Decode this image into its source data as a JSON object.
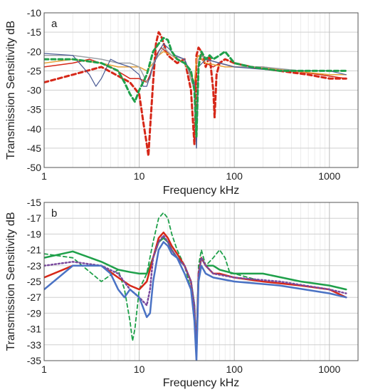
{
  "chart_data": [
    {
      "type": "line",
      "panel_label": "a",
      "xlabel": "Frequency  kHz",
      "ylabel": "Transmission Sensitivity  dB",
      "x_scale": "log",
      "xlim": [
        1,
        2000
      ],
      "ylim": [
        -50,
        -10
      ],
      "x_ticks": [
        1,
        10,
        100,
        1000
      ],
      "x_tick_labels": [
        "1",
        "10",
        "100",
        "1000"
      ],
      "y_ticks": [
        -50,
        -45,
        -40,
        -35,
        -30,
        -25,
        -20,
        -15,
        -10
      ],
      "y_tick_labels": [
        "-50",
        "-45",
        "-40",
        "-35",
        "-30",
        "-25",
        "-20",
        "-15",
        "-10"
      ],
      "grid": true,
      "series": [
        {
          "color": "#d62718",
          "dash": "6,4",
          "width": 3,
          "x": [
            1,
            2,
            4,
            8,
            10,
            11,
            12,
            12.5,
            13,
            14,
            15,
            16,
            17,
            20,
            25,
            30,
            35,
            38,
            39,
            40,
            42,
            45,
            50,
            55,
            60,
            62,
            65,
            70,
            80,
            100,
            150,
            300,
            600,
            1000,
            1500
          ],
          "y": [
            -28,
            -26,
            -24,
            -28,
            -31,
            -38,
            -44,
            -47,
            -40,
            -28,
            -18,
            -15,
            -16,
            -21,
            -23,
            -22,
            -30,
            -44,
            -35,
            -21,
            -19,
            -20,
            -24,
            -21,
            -30,
            -37,
            -26,
            -23,
            -22,
            -23,
            -24,
            -25,
            -26,
            -27,
            -27
          ]
        },
        {
          "color": "#d62718",
          "dash": "",
          "width": 1.5,
          "x": [
            1,
            2,
            3,
            5,
            8,
            10,
            12,
            13,
            15,
            17,
            19,
            22,
            25,
            30,
            35,
            39,
            40,
            42,
            45,
            50,
            60,
            70,
            100,
            200,
            400,
            800,
            1500
          ],
          "y": [
            -24,
            -23,
            -22,
            -24,
            -27,
            -27,
            -28,
            -26,
            -21,
            -19,
            -20,
            -21,
            -22,
            -23,
            -26,
            -30,
            -22,
            -21,
            -22,
            -23,
            -24,
            -23,
            -24,
            -24,
            -25,
            -26,
            -27
          ]
        },
        {
          "color": "#e8a23a",
          "dash": "",
          "width": 1.5,
          "x": [
            1,
            2,
            4,
            6,
            8,
            10,
            12,
            14,
            16,
            18,
            22,
            30,
            38,
            40,
            42,
            50,
            80,
            150,
            400,
            1000,
            1500
          ],
          "y": [
            -23,
            -22,
            -23,
            -24,
            -24,
            -24,
            -25,
            -23,
            -21,
            -20,
            -21,
            -23,
            -28,
            -22,
            -21,
            -23,
            -24,
            -24,
            -25,
            -26,
            -26
          ]
        },
        {
          "color": "#9ca0a6",
          "dash": "",
          "width": 1.5,
          "x": [
            1,
            2,
            4,
            6,
            8,
            10,
            11,
            12,
            13,
            14,
            16,
            18,
            22,
            30,
            38,
            39,
            40,
            41,
            42,
            45,
            50,
            70,
            100,
            200,
            500,
            1000,
            1500
          ],
          "y": [
            -21,
            -21,
            -22,
            -23,
            -23,
            -24,
            -26,
            -28,
            -27,
            -23,
            -21,
            -19,
            -21,
            -22,
            -30,
            -40,
            -45,
            -35,
            -22,
            -21,
            -22,
            -23,
            -24,
            -24,
            -25,
            -25,
            -25
          ]
        },
        {
          "color": "#4a5a94",
          "dash": "",
          "width": 1.2,
          "x": [
            1,
            2,
            3,
            3.5,
            4,
            5,
            6,
            8,
            10,
            11,
            12,
            14,
            16,
            18,
            20,
            24,
            30,
            38,
            40,
            42,
            50,
            70,
            100,
            300,
            1000,
            1500
          ],
          "y": [
            -20.5,
            -21,
            -26,
            -29,
            -27,
            -22,
            -23,
            -24,
            -26,
            -29,
            -29,
            -24,
            -20,
            -18,
            -19,
            -21,
            -22,
            -28,
            -45,
            -24,
            -22,
            -23,
            -24,
            -25,
            -25,
            -26
          ]
        },
        {
          "color": "#1fa04a",
          "dash": "6,4",
          "width": 3,
          "x": [
            1,
            2,
            4,
            6,
            7,
            8,
            9,
            10,
            12,
            14,
            16,
            18,
            20,
            22,
            25,
            30,
            35,
            38,
            40,
            42,
            45,
            50,
            55,
            60,
            70,
            80,
            100,
            150,
            300,
            600,
            1000,
            1500
          ],
          "y": [
            -22,
            -22,
            -23,
            -25,
            -28,
            -31,
            -33,
            -30,
            -26,
            -20,
            -18,
            -16.5,
            -17,
            -20,
            -22,
            -23,
            -25,
            -30,
            -42,
            -24,
            -20,
            -22,
            -21,
            -22,
            -21,
            -20,
            -23,
            -24,
            -25,
            -25,
            -25,
            -25
          ]
        }
      ]
    },
    {
      "type": "line",
      "panel_label": "b",
      "xlabel": "Frequency  kHz",
      "ylabel": "Transmission Sensitivity  dB",
      "x_scale": "log",
      "xlim": [
        1,
        2000
      ],
      "ylim": [
        -35,
        -15
      ],
      "x_ticks": [
        1,
        10,
        100,
        1000
      ],
      "x_tick_labels": [
        "1",
        "10",
        "100",
        "1000"
      ],
      "y_ticks": [
        -35,
        -33,
        -31,
        -29,
        -27,
        -25,
        -23,
        -21,
        -19,
        -17,
        -15
      ],
      "y_tick_labels": [
        "-35",
        "-33",
        "-31",
        "-29",
        "-27",
        "-25",
        "-23",
        "-21",
        "-19",
        "-17",
        "-15"
      ],
      "grid": true,
      "series": [
        {
          "color": "#1fa04a",
          "dash": "",
          "width": 2.5,
          "x": [
            1,
            2,
            4,
            6,
            8,
            10,
            12,
            14,
            16,
            18,
            20,
            22,
            25,
            30,
            35,
            38,
            40,
            42,
            45,
            50,
            60,
            70,
            100,
            200,
            500,
            1000,
            1500
          ],
          "y": [
            -22,
            -21.2,
            -22.5,
            -23.5,
            -23.8,
            -24,
            -24,
            -22,
            -20,
            -19.5,
            -20,
            -21,
            -22,
            -23,
            -25,
            -28,
            -34,
            -24,
            -22,
            -23,
            -23,
            -23.5,
            -24,
            -24,
            -25,
            -25.5,
            -26
          ]
        },
        {
          "color": "#1fa04a",
          "dash": "5,4",
          "width": 1.8,
          "x": [
            1,
            2,
            4,
            6,
            7,
            8,
            8.5,
            9,
            10,
            12,
            14,
            16,
            18,
            20,
            22,
            25,
            30,
            35,
            38,
            40,
            42,
            45,
            50,
            60,
            70,
            80,
            90,
            100,
            200,
            500,
            1000,
            1500
          ],
          "y": [
            -21.5,
            -22,
            -25,
            -23.5,
            -26,
            -30,
            -32.5,
            -31,
            -26,
            -24,
            -20,
            -17,
            -16.3,
            -17,
            -19,
            -21,
            -23,
            -26,
            -30,
            -35,
            -23,
            -21,
            -23,
            -22,
            -21,
            -22,
            -24,
            -24,
            -25,
            -25.5,
            -26,
            -27
          ]
        },
        {
          "color": "#d62718",
          "dash": "",
          "width": 2.5,
          "x": [
            1,
            2,
            4,
            6,
            8,
            10,
            12,
            14,
            16,
            18,
            20,
            22,
            25,
            30,
            35,
            38,
            40,
            42,
            45,
            50,
            60,
            70,
            100,
            200,
            500,
            1000,
            1500
          ],
          "y": [
            -24.5,
            -23,
            -23,
            -24.5,
            -25.5,
            -26,
            -25,
            -22,
            -19.5,
            -18.8,
            -19.5,
            -20.5,
            -21.5,
            -23,
            -25,
            -29,
            -34,
            -24,
            -22,
            -23,
            -24,
            -24,
            -24.5,
            -25,
            -25.5,
            -26,
            -27
          ]
        },
        {
          "color": "#7a4a9e",
          "dash": "2,3",
          "width": 2.5,
          "x": [
            1,
            2,
            4,
            6,
            8,
            10,
            12,
            13,
            14,
            16,
            18,
            20,
            22,
            25,
            30,
            35,
            38,
            40,
            42,
            45,
            50,
            60,
            100,
            300,
            1000,
            1500
          ],
          "y": [
            -23,
            -22.5,
            -23,
            -24,
            -26,
            -27,
            -28,
            -26,
            -22,
            -20,
            -19.2,
            -20,
            -21,
            -22,
            -23,
            -25,
            -28,
            -34,
            -24,
            -22,
            -23,
            -24,
            -24.5,
            -25,
            -26,
            -26.5
          ]
        },
        {
          "color": "#4a72c4",
          "dash": "",
          "width": 2.5,
          "x": [
            1,
            2,
            4,
            5,
            6,
            7,
            8,
            10,
            12,
            13,
            14,
            16,
            18,
            20,
            22,
            25,
            30,
            35,
            38,
            40,
            42,
            45,
            50,
            60,
            100,
            300,
            1000,
            1500
          ],
          "y": [
            -26,
            -23,
            -23,
            -24,
            -26,
            -27,
            -26,
            -27,
            -29.5,
            -29,
            -25,
            -21,
            -20,
            -20.5,
            -21.5,
            -22,
            -24,
            -26,
            -30,
            -35,
            -25,
            -23,
            -24,
            -24.5,
            -25,
            -25.5,
            -26.5,
            -27
          ]
        }
      ]
    }
  ]
}
